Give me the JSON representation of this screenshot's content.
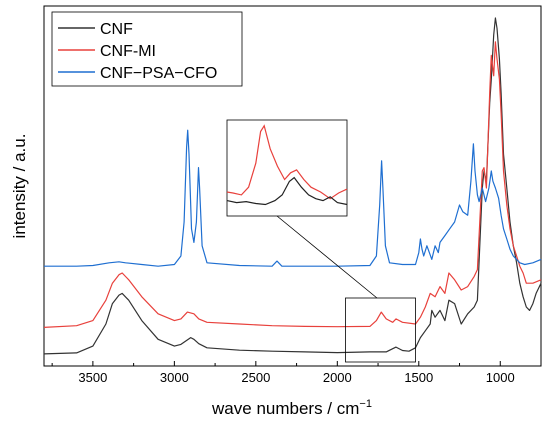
{
  "chart_data": {
    "type": "line",
    "title": "",
    "xlabel": "wave numbers / cm",
    "xlabel_superscript": "−1",
    "ylabel": "intensity / a.u.",
    "xlim": [
      3800,
      750
    ],
    "x_reversed": true,
    "ylim": [
      0,
      1
    ],
    "y_ticks_labeled": false,
    "x_ticks": [
      3500,
      3000,
      2500,
      2000,
      1500,
      1000
    ],
    "x_tick_labels": [
      "3500",
      "3000",
      "2500",
      "2000",
      "1500",
      "1000"
    ],
    "legend_position": "top-left",
    "grid": false,
    "series": [
      {
        "name": "CNF",
        "color": "#333333",
        "points": [
          [
            3800,
            0.012
          ],
          [
            3600,
            0.015
          ],
          [
            3500,
            0.035
          ],
          [
            3420,
            0.1
          ],
          [
            3380,
            0.16
          ],
          [
            3340,
            0.185
          ],
          [
            3320,
            0.19
          ],
          [
            3280,
            0.17
          ],
          [
            3200,
            0.11
          ],
          [
            3100,
            0.055
          ],
          [
            3000,
            0.035
          ],
          [
            2960,
            0.04
          ],
          [
            2900,
            0.06
          ],
          [
            2880,
            0.055
          ],
          [
            2850,
            0.042
          ],
          [
            2800,
            0.03
          ],
          [
            2600,
            0.023
          ],
          [
            2400,
            0.02
          ],
          [
            2200,
            0.018
          ],
          [
            2000,
            0.016
          ],
          [
            1800,
            0.018
          ],
          [
            1700,
            0.018
          ],
          [
            1640,
            0.032
          ],
          [
            1600,
            0.022
          ],
          [
            1560,
            0.02
          ],
          [
            1520,
            0.03
          ],
          [
            1490,
            0.06
          ],
          [
            1460,
            0.08
          ],
          [
            1430,
            0.1
          ],
          [
            1420,
            0.14
          ],
          [
            1400,
            0.12
          ],
          [
            1370,
            0.14
          ],
          [
            1340,
            0.11
          ],
          [
            1315,
            0.17
          ],
          [
            1280,
            0.16
          ],
          [
            1240,
            0.1
          ],
          [
            1200,
            0.13
          ],
          [
            1160,
            0.15
          ],
          [
            1140,
            0.17
          ],
          [
            1110,
            0.5
          ],
          [
            1100,
            0.55
          ],
          [
            1085,
            0.52
          ],
          [
            1065,
            0.75
          ],
          [
            1055,
            0.82
          ],
          [
            1040,
            0.95
          ],
          [
            1030,
            1.0
          ],
          [
            1020,
            0.97
          ],
          [
            1005,
            0.88
          ],
          [
            995,
            0.78
          ],
          [
            980,
            0.6
          ],
          [
            960,
            0.5
          ],
          [
            940,
            0.4
          ],
          [
            920,
            0.33
          ],
          [
            900,
            0.28
          ],
          [
            880,
            0.22
          ],
          [
            860,
            0.18
          ],
          [
            840,
            0.15
          ],
          [
            820,
            0.14
          ],
          [
            800,
            0.16
          ],
          [
            780,
            0.19
          ],
          [
            750,
            0.22
          ]
        ]
      },
      {
        "name": "CNF-MI",
        "color": "#e8413c",
        "points": [
          [
            3800,
            0.09
          ],
          [
            3600,
            0.095
          ],
          [
            3500,
            0.11
          ],
          [
            3420,
            0.17
          ],
          [
            3380,
            0.22
          ],
          [
            3340,
            0.245
          ],
          [
            3320,
            0.25
          ],
          [
            3280,
            0.23
          ],
          [
            3200,
            0.18
          ],
          [
            3100,
            0.13
          ],
          [
            3000,
            0.11
          ],
          [
            2960,
            0.115
          ],
          [
            2920,
            0.135
          ],
          [
            2880,
            0.13
          ],
          [
            2850,
            0.115
          ],
          [
            2800,
            0.105
          ],
          [
            2600,
            0.1
          ],
          [
            2400,
            0.095
          ],
          [
            2200,
            0.093
          ],
          [
            2000,
            0.092
          ],
          [
            1800,
            0.093
          ],
          [
            1760,
            0.11
          ],
          [
            1730,
            0.135
          ],
          [
            1700,
            0.115
          ],
          [
            1660,
            0.105
          ],
          [
            1640,
            0.115
          ],
          [
            1600,
            0.105
          ],
          [
            1520,
            0.1
          ],
          [
            1490,
            0.12
          ],
          [
            1460,
            0.15
          ],
          [
            1430,
            0.19
          ],
          [
            1400,
            0.18
          ],
          [
            1370,
            0.21
          ],
          [
            1340,
            0.19
          ],
          [
            1315,
            0.25
          ],
          [
            1280,
            0.23
          ],
          [
            1240,
            0.2
          ],
          [
            1200,
            0.21
          ],
          [
            1160,
            0.24
          ],
          [
            1140,
            0.26
          ],
          [
            1110,
            0.55
          ],
          [
            1100,
            0.56
          ],
          [
            1085,
            0.5
          ],
          [
            1065,
            0.78
          ],
          [
            1055,
            0.89
          ],
          [
            1040,
            0.83
          ],
          [
            1030,
            0.93
          ],
          [
            1020,
            0.88
          ],
          [
            1005,
            0.82
          ],
          [
            995,
            0.72
          ],
          [
            980,
            0.55
          ],
          [
            960,
            0.45
          ],
          [
            940,
            0.38
          ],
          [
            920,
            0.33
          ],
          [
            900,
            0.3
          ],
          [
            880,
            0.27
          ],
          [
            860,
            0.25
          ],
          [
            840,
            0.22
          ],
          [
            800,
            0.22
          ],
          [
            750,
            0.23
          ]
        ]
      },
      {
        "name": "CNF−PSA−CFO",
        "color": "#1f6fd1",
        "points": [
          [
            3800,
            0.27
          ],
          [
            3600,
            0.27
          ],
          [
            3500,
            0.272
          ],
          [
            3400,
            0.28
          ],
          [
            3340,
            0.283
          ],
          [
            3300,
            0.28
          ],
          [
            3200,
            0.275
          ],
          [
            3100,
            0.27
          ],
          [
            3000,
            0.275
          ],
          [
            2960,
            0.3
          ],
          [
            2940,
            0.4
          ],
          [
            2925,
            0.62
          ],
          [
            2918,
            0.67
          ],
          [
            2910,
            0.6
          ],
          [
            2895,
            0.38
          ],
          [
            2880,
            0.34
          ],
          [
            2865,
            0.4
          ],
          [
            2852,
            0.56
          ],
          [
            2845,
            0.5
          ],
          [
            2830,
            0.33
          ],
          [
            2800,
            0.28
          ],
          [
            2600,
            0.272
          ],
          [
            2400,
            0.27
          ],
          [
            2370,
            0.285
          ],
          [
            2340,
            0.27
          ],
          [
            2200,
            0.27
          ],
          [
            2000,
            0.27
          ],
          [
            1800,
            0.272
          ],
          [
            1760,
            0.3
          ],
          [
            1740,
            0.45
          ],
          [
            1728,
            0.58
          ],
          [
            1720,
            0.5
          ],
          [
            1705,
            0.33
          ],
          [
            1680,
            0.28
          ],
          [
            1600,
            0.275
          ],
          [
            1520,
            0.275
          ],
          [
            1500,
            0.31
          ],
          [
            1490,
            0.35
          ],
          [
            1480,
            0.32
          ],
          [
            1470,
            0.3
          ],
          [
            1450,
            0.33
          ],
          [
            1420,
            0.29
          ],
          [
            1400,
            0.33
          ],
          [
            1380,
            0.31
          ],
          [
            1370,
            0.34
          ],
          [
            1340,
            0.36
          ],
          [
            1310,
            0.38
          ],
          [
            1280,
            0.4
          ],
          [
            1250,
            0.45
          ],
          [
            1230,
            0.43
          ],
          [
            1200,
            0.42
          ],
          [
            1180,
            0.52
          ],
          [
            1165,
            0.63
          ],
          [
            1155,
            0.55
          ],
          [
            1140,
            0.48
          ],
          [
            1130,
            0.46
          ],
          [
            1110,
            0.5
          ],
          [
            1090,
            0.46
          ],
          [
            1070,
            0.5
          ],
          [
            1055,
            0.55
          ],
          [
            1045,
            0.52
          ],
          [
            1030,
            0.5
          ],
          [
            1010,
            0.47
          ],
          [
            995,
            0.42
          ],
          [
            980,
            0.38
          ],
          [
            960,
            0.35
          ],
          [
            940,
            0.32
          ],
          [
            920,
            0.3
          ],
          [
            900,
            0.29
          ],
          [
            880,
            0.28
          ],
          [
            850,
            0.275
          ],
          [
            800,
            0.28
          ],
          [
            750,
            0.29
          ]
        ]
      }
    ],
    "inset": {
      "source_xlim": [
        1950,
        1520
      ],
      "description_tag": "zoom-inset",
      "curves": [
        {
          "series": "CNF-MI",
          "color": "#e8413c",
          "points": [
            [
              0,
              0.75
            ],
            [
              0.05,
              0.76
            ],
            [
              0.12,
              0.78
            ],
            [
              0.18,
              0.7
            ],
            [
              0.24,
              0.45
            ],
            [
              0.28,
              0.12
            ],
            [
              0.31,
              0.06
            ],
            [
              0.36,
              0.3
            ],
            [
              0.42,
              0.48
            ],
            [
              0.48,
              0.62
            ],
            [
              0.53,
              0.55
            ],
            [
              0.58,
              0.52
            ],
            [
              0.64,
              0.62
            ],
            [
              0.7,
              0.7
            ],
            [
              0.78,
              0.75
            ],
            [
              0.86,
              0.82
            ],
            [
              0.93,
              0.76
            ],
            [
              1.0,
              0.72
            ]
          ]
        },
        {
          "series": "CNF",
          "color": "#222222",
          "points": [
            [
              0,
              0.84
            ],
            [
              0.08,
              0.86
            ],
            [
              0.16,
              0.85
            ],
            [
              0.24,
              0.87
            ],
            [
              0.32,
              0.88
            ],
            [
              0.4,
              0.84
            ],
            [
              0.46,
              0.78
            ],
            [
              0.52,
              0.64
            ],
            [
              0.56,
              0.6
            ],
            [
              0.62,
              0.7
            ],
            [
              0.68,
              0.78
            ],
            [
              0.74,
              0.82
            ],
            [
              0.8,
              0.84
            ],
            [
              0.86,
              0.8
            ],
            [
              0.92,
              0.86
            ],
            [
              1.0,
              0.88
            ]
          ]
        }
      ]
    }
  }
}
